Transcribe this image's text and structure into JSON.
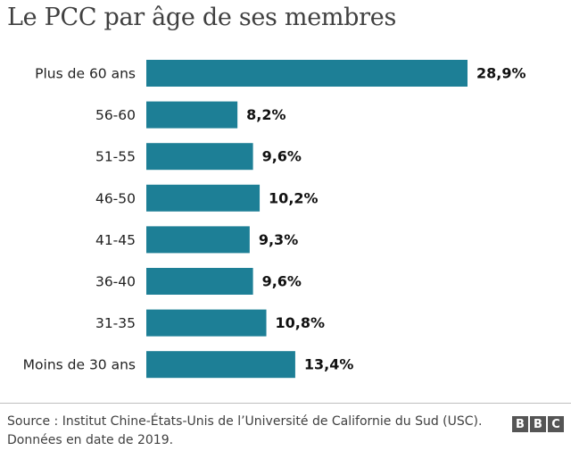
{
  "header": {
    "title": "Le PCC par âge de ses membres"
  },
  "chart_data": {
    "type": "bar",
    "orientation": "horizontal",
    "title": "Le PCC par âge de ses membres",
    "xlabel": "",
    "ylabel": "",
    "xlim": [
      0,
      28.9
    ],
    "grid": false,
    "categories": [
      "Plus de 60 ans",
      "56-60",
      "51-55",
      "46-50",
      "41-45",
      "36-40",
      "31-35",
      "Moins de 30 ans"
    ],
    "values": [
      28.9,
      8.2,
      9.6,
      10.2,
      9.3,
      9.6,
      10.8,
      13.4
    ],
    "value_labels": [
      "28,9%",
      "8,2%",
      "9,6%",
      "10,2%",
      "9,3%",
      "9,6%",
      "10,8%",
      "13,4%"
    ],
    "bar_color": "#1d7f96"
  },
  "footer": {
    "source_line1": "Source : Institut Chine-États-Unis de l’Université de Californie du Sud (USC).",
    "source_line2": "Données en date de 2019.",
    "logo_letters": [
      "B",
      "B",
      "C"
    ]
  }
}
